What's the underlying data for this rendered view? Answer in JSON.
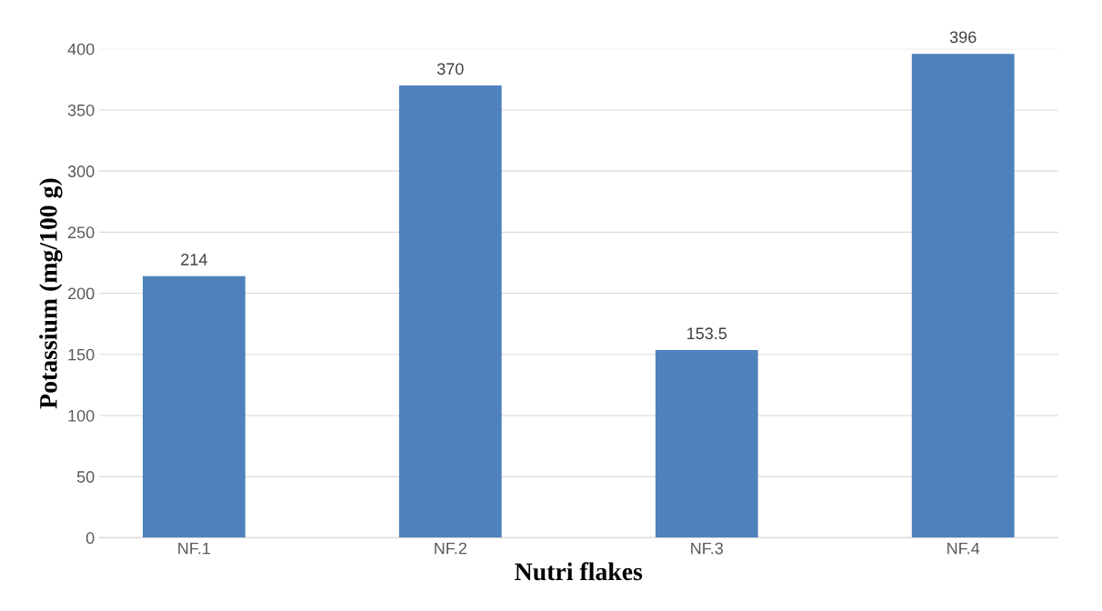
{
  "chart_data": {
    "type": "bar",
    "xlabel": "Nutri flakes",
    "ylabel": "Potassium (mg/100 g)",
    "categories": [
      "NF.1",
      "NF.2",
      "NF.3",
      "NF.4"
    ],
    "values": [
      214,
      370,
      153.5,
      396
    ],
    "color": "#4f81bd",
    "ylim": [
      0,
      400
    ],
    "yticks": [
      0,
      50,
      100,
      150,
      200,
      250,
      300,
      350,
      400
    ],
    "grid": "y",
    "data_labels": true
  }
}
